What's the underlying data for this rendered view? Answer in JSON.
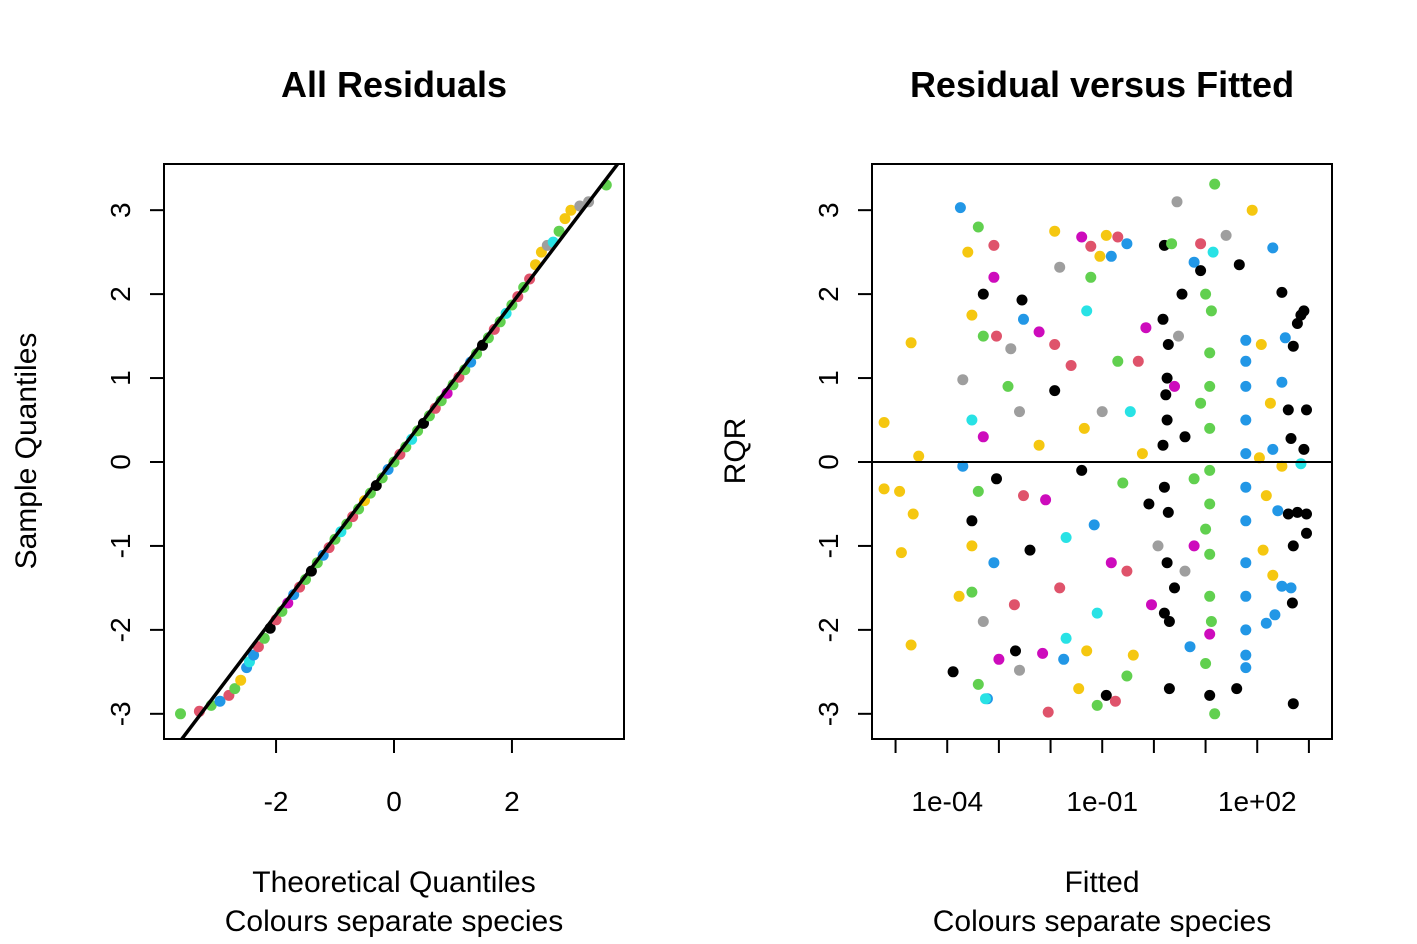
{
  "chart_data": [
    {
      "type": "scatter",
      "title": "All Residuals",
      "xlabel_lines": [
        "Theoretical Quantiles",
        "Colours separate species"
      ],
      "ylabel": "Sample Quantiles",
      "xlim": [
        -3.9,
        3.9
      ],
      "ylim": [
        -3.3,
        3.55
      ],
      "x_ticks": [
        -2,
        0,
        2
      ],
      "x_tick_labels": [
        "-2",
        "0",
        "2"
      ],
      "y_ticks": [
        -3,
        -2,
        -1,
        0,
        1,
        2,
        3
      ],
      "y_tick_labels": [
        "-3",
        "-2",
        "-1",
        "0",
        "1",
        "2",
        "3"
      ],
      "reference_line": {
        "x": [
          -3.9,
          3.9
        ],
        "y": [
          -3.58,
          3.65
        ]
      },
      "series_colors": [
        "#000000",
        "#DF536B",
        "#61D04F",
        "#2297E6",
        "#28E2E5",
        "#CD0BBC",
        "#F5C710",
        "#9E9E9E"
      ],
      "points": [
        [
          -3.62,
          -3.0,
          2
        ],
        [
          -3.3,
          -2.97,
          1
        ],
        [
          -3.1,
          -2.9,
          2
        ],
        [
          -2.95,
          -2.85,
          3
        ],
        [
          -2.8,
          -2.78,
          1
        ],
        [
          -2.7,
          -2.7,
          2
        ],
        [
          -2.6,
          -2.6,
          6
        ],
        [
          -2.5,
          -2.45,
          3
        ],
        [
          -2.45,
          -2.38,
          4
        ],
        [
          -2.38,
          -2.3,
          3
        ],
        [
          -2.3,
          -2.2,
          1
        ],
        [
          -2.2,
          -2.1,
          2
        ],
        [
          -2.1,
          -1.98,
          0
        ],
        [
          -2.0,
          -1.88,
          1
        ],
        [
          -1.9,
          -1.78,
          2
        ],
        [
          -1.8,
          -1.68,
          5
        ],
        [
          -1.7,
          -1.58,
          3
        ],
        [
          -1.6,
          -1.49,
          1
        ],
        [
          -1.5,
          -1.4,
          2
        ],
        [
          -1.4,
          -1.3,
          0
        ],
        [
          -1.3,
          -1.2,
          2
        ],
        [
          -1.2,
          -1.11,
          3
        ],
        [
          -1.1,
          -1.02,
          1
        ],
        [
          -1.0,
          -0.92,
          2
        ],
        [
          -0.9,
          -0.83,
          4
        ],
        [
          -0.8,
          -0.74,
          2
        ],
        [
          -0.7,
          -0.65,
          1
        ],
        [
          -0.6,
          -0.56,
          2
        ],
        [
          -0.5,
          -0.46,
          6
        ],
        [
          -0.4,
          -0.37,
          2
        ],
        [
          -0.3,
          -0.28,
          0
        ],
        [
          -0.2,
          -0.19,
          2
        ],
        [
          -0.1,
          -0.09,
          3
        ],
        [
          0.0,
          0.0,
          2
        ],
        [
          0.1,
          0.09,
          1
        ],
        [
          0.2,
          0.18,
          2
        ],
        [
          0.3,
          0.27,
          4
        ],
        [
          0.4,
          0.37,
          2
        ],
        [
          0.5,
          0.46,
          0
        ],
        [
          0.6,
          0.55,
          2
        ],
        [
          0.7,
          0.64,
          1
        ],
        [
          0.8,
          0.73,
          2
        ],
        [
          0.9,
          0.82,
          5
        ],
        [
          1.0,
          0.92,
          2
        ],
        [
          1.1,
          1.01,
          1
        ],
        [
          1.2,
          1.1,
          2
        ],
        [
          1.3,
          1.19,
          3
        ],
        [
          1.4,
          1.29,
          2
        ],
        [
          1.5,
          1.39,
          0
        ],
        [
          1.6,
          1.48,
          2
        ],
        [
          1.7,
          1.58,
          1
        ],
        [
          1.8,
          1.67,
          2
        ],
        [
          1.9,
          1.77,
          4
        ],
        [
          2.0,
          1.87,
          2
        ],
        [
          2.1,
          1.97,
          1
        ],
        [
          2.2,
          2.08,
          2
        ],
        [
          2.3,
          2.18,
          1
        ],
        [
          2.4,
          2.35,
          6
        ],
        [
          2.5,
          2.5,
          6
        ],
        [
          2.6,
          2.58,
          7
        ],
        [
          2.7,
          2.62,
          4
        ],
        [
          2.8,
          2.75,
          2
        ],
        [
          2.9,
          2.9,
          6
        ],
        [
          3.0,
          3.0,
          6
        ],
        [
          3.15,
          3.05,
          7
        ],
        [
          3.3,
          3.1,
          7
        ],
        [
          3.6,
          3.3,
          2
        ]
      ]
    },
    {
      "type": "scatter",
      "title": "Residual versus Fitted",
      "xlabel_lines": [
        "Fitted",
        "Colours separate species"
      ],
      "ylabel": "RQR",
      "x_log10": true,
      "xlim": [
        3.5e-06,
        2800
      ],
      "ylim": [
        -3.3,
        3.55
      ],
      "x_ticks": [
        1e-05,
        0.0001,
        0.001,
        0.01,
        0.1,
        1,
        10,
        100,
        1000
      ],
      "x_tick_labels": [
        "1e-04",
        "1e-01",
        "1e+02"
      ],
      "x_tick_label_values": [
        0.0001,
        0.1,
        100
      ],
      "y_ticks": [
        -3,
        -2,
        -1,
        0,
        1,
        2,
        3
      ],
      "y_tick_labels": [
        "-3",
        "-2",
        "-1",
        "0",
        "1",
        "2",
        "3"
      ],
      "hline": 0,
      "series_colors": [
        "#000000",
        "#DF536B",
        "#61D04F",
        "#2297E6",
        "#28E2E5",
        "#CD0BBC",
        "#F5C710",
        "#9E9E9E"
      ],
      "points": [
        [
          6e-06,
          0.47,
          6
        ],
        [
          6e-06,
          -0.32,
          6
        ],
        [
          1.3e-05,
          -1.08,
          6
        ],
        [
          1.2e-05,
          -0.35,
          6
        ],
        [
          2e-05,
          1.42,
          6
        ],
        [
          2e-05,
          -2.18,
          6
        ],
        [
          2.8e-05,
          0.07,
          6
        ],
        [
          2.2e-05,
          -0.62,
          6
        ],
        [
          0.00018,
          3.03,
          3
        ],
        [
          0.0004,
          2.8,
          2
        ],
        [
          0.00025,
          2.5,
          6
        ],
        [
          0.0008,
          2.58,
          1
        ],
        [
          0.0008,
          2.2,
          5
        ],
        [
          0.0005,
          2.0,
          0
        ],
        [
          0.0028,
          1.93,
          0
        ],
        [
          0.0021,
          -2.25,
          0
        ],
        [
          0.0004,
          -2.65,
          2
        ],
        [
          0.0006,
          -2.82,
          3
        ],
        [
          0.00055,
          -2.82,
          4
        ],
        [
          0.00013,
          -2.5,
          0
        ],
        [
          0.0025,
          -2.48,
          7
        ],
        [
          0.009,
          -2.98,
          1
        ],
        [
          0.035,
          -2.7,
          6
        ],
        [
          0.12,
          -2.78,
          0
        ],
        [
          0.18,
          -2.85,
          1
        ],
        [
          0.3,
          -2.55,
          2
        ],
        [
          0.08,
          -2.9,
          2
        ],
        [
          0.05,
          -2.25,
          6
        ],
        [
          0.02,
          -2.1,
          4
        ],
        [
          0.007,
          -2.28,
          5
        ],
        [
          0.012,
          2.75,
          6
        ],
        [
          0.04,
          2.68,
          5
        ],
        [
          0.12,
          2.7,
          6
        ],
        [
          0.2,
          2.68,
          1
        ],
        [
          0.3,
          2.6,
          3
        ],
        [
          0.06,
          2.57,
          1
        ],
        [
          0.09,
          2.45,
          6
        ],
        [
          0.015,
          2.32,
          7
        ],
        [
          0.15,
          2.45,
          3
        ],
        [
          1.6,
          2.58,
          0
        ],
        [
          2.2,
          2.6,
          2
        ],
        [
          2.8,
          3.1,
          7
        ],
        [
          8,
          2.6,
          1
        ],
        [
          14,
          2.5,
          4
        ],
        [
          15,
          3.31,
          2
        ],
        [
          25,
          2.7,
          7
        ],
        [
          80,
          3.0,
          6
        ],
        [
          200,
          2.55,
          3
        ],
        [
          45,
          2.35,
          0
        ],
        [
          6,
          2.38,
          3
        ],
        [
          8,
          2.28,
          0
        ],
        [
          10,
          2.0,
          2
        ],
        [
          3.5,
          2.0,
          0
        ],
        [
          300,
          2.02,
          0
        ],
        [
          800,
          1.8,
          0
        ],
        [
          700,
          1.75,
          0
        ],
        [
          600,
          1.65,
          0
        ],
        [
          350,
          1.48,
          3
        ],
        [
          120,
          1.4,
          6
        ],
        [
          500,
          1.38,
          0
        ],
        [
          300,
          0.95,
          3
        ],
        [
          180,
          0.7,
          6
        ],
        [
          400,
          0.62,
          0
        ],
        [
          900,
          0.62,
          0
        ],
        [
          450,
          0.28,
          0
        ],
        [
          800,
          0.15,
          0
        ],
        [
          200,
          0.15,
          3
        ],
        [
          110,
          0.05,
          6
        ],
        [
          300,
          -0.05,
          6
        ],
        [
          700,
          -0.02,
          4
        ],
        [
          150,
          -0.4,
          6
        ],
        [
          600,
          -0.6,
          0
        ],
        [
          900,
          -0.62,
          0
        ],
        [
          400,
          -0.62,
          0
        ],
        [
          250,
          -0.58,
          3
        ],
        [
          900,
          -0.85,
          0
        ],
        [
          500,
          -1.0,
          0
        ],
        [
          130,
          -1.05,
          6
        ],
        [
          200,
          -1.35,
          6
        ],
        [
          300,
          -1.48,
          3
        ],
        [
          450,
          -1.5,
          3
        ],
        [
          480,
          -1.68,
          0
        ],
        [
          220,
          -1.82,
          3
        ],
        [
          150,
          -1.92,
          3
        ],
        [
          40,
          -2.7,
          0
        ],
        [
          500,
          -2.88,
          0
        ],
        [
          12,
          -2.78,
          0
        ],
        [
          2,
          -2.7,
          0
        ],
        [
          15,
          -3.0,
          2
        ],
        [
          10,
          -2.4,
          2
        ],
        [
          0.0003,
          1.75,
          6
        ],
        [
          0.0005,
          1.5,
          2
        ],
        [
          0.0009,
          1.5,
          1
        ],
        [
          0.0017,
          1.35,
          7
        ],
        [
          0.003,
          1.7,
          3
        ],
        [
          0.006,
          1.55,
          5
        ],
        [
          0.0002,
          0.98,
          7
        ],
        [
          0.0003,
          0.5,
          4
        ],
        [
          0.0002,
          -0.05,
          3
        ],
        [
          0.0004,
          -0.35,
          2
        ],
        [
          0.0003,
          -0.7,
          0
        ],
        [
          0.00017,
          -1.6,
          6
        ],
        [
          0.0003,
          -1.55,
          2
        ],
        [
          0.0005,
          -1.9,
          7
        ],
        [
          0.001,
          -2.35,
          5
        ],
        [
          0.002,
          -1.7,
          1
        ],
        [
          0.004,
          -1.05,
          0
        ],
        [
          0.008,
          -0.45,
          5
        ],
        [
          0.012,
          0.85,
          0
        ],
        [
          0.025,
          1.15,
          1
        ],
        [
          0.045,
          0.4,
          6
        ],
        [
          0.07,
          -0.75,
          3
        ],
        [
          0.15,
          -1.2,
          5
        ],
        [
          0.25,
          -0.25,
          2
        ],
        [
          0.35,
          0.6,
          4
        ],
        [
          0.5,
          1.2,
          1
        ],
        [
          0.8,
          -0.5,
          0
        ],
        [
          1.2,
          -1.0,
          7
        ],
        [
          1.8,
          1.0,
          0
        ],
        [
          2.5,
          -1.5,
          0
        ],
        [
          4,
          0.3,
          0
        ],
        [
          6,
          -0.2,
          2
        ],
        [
          8,
          0.7,
          2
        ],
        [
          10,
          -0.8,
          2
        ],
        [
          1.5,
          0.2,
          0
        ],
        [
          1.6,
          -0.3,
          0
        ],
        [
          1.7,
          0.8,
          0
        ],
        [
          1.8,
          -1.2,
          0
        ],
        [
          1.9,
          1.4,
          0
        ],
        [
          2.0,
          -1.9,
          0
        ],
        [
          1.5,
          1.7,
          0
        ],
        [
          1.6,
          -1.8,
          0
        ],
        [
          1.8,
          0.5,
          0
        ],
        [
          1.9,
          -0.6,
          0
        ],
        [
          12,
          1.3,
          2
        ],
        [
          12,
          0.9,
          2
        ],
        [
          12,
          0.4,
          2
        ],
        [
          12,
          -0.1,
          2
        ],
        [
          12,
          -0.5,
          2
        ],
        [
          12,
          -1.1,
          2
        ],
        [
          12,
          -1.6,
          2
        ],
        [
          13,
          1.8,
          2
        ],
        [
          13,
          -1.9,
          2
        ],
        [
          12,
          -2.05,
          5
        ],
        [
          60,
          1.2,
          3
        ],
        [
          60,
          0.9,
          3
        ],
        [
          60,
          0.5,
          3
        ],
        [
          60,
          0.1,
          3
        ],
        [
          60,
          -0.3,
          3
        ],
        [
          60,
          -0.7,
          3
        ],
        [
          60,
          -1.2,
          3
        ],
        [
          60,
          -1.6,
          3
        ],
        [
          60,
          -2.0,
          3
        ],
        [
          60,
          -2.3,
          3
        ],
        [
          60,
          -2.45,
          3
        ],
        [
          60,
          1.45,
          3
        ],
        [
          0.2,
          1.2,
          2
        ],
        [
          0.3,
          -1.3,
          1
        ],
        [
          0.1,
          0.6,
          7
        ],
        [
          0.02,
          -0.9,
          4
        ],
        [
          0.006,
          0.2,
          6
        ],
        [
          0.003,
          -0.4,
          1
        ],
        [
          0.0015,
          0.9,
          2
        ],
        [
          0.0008,
          -1.2,
          3
        ],
        [
          0.0005,
          0.3,
          5
        ],
        [
          0.0003,
          -1.0,
          6
        ],
        [
          0.7,
          1.6,
          5
        ],
        [
          0.9,
          -1.7,
          5
        ],
        [
          3,
          1.5,
          7
        ],
        [
          4,
          -1.3,
          7
        ],
        [
          0.05,
          1.8,
          4
        ],
        [
          0.08,
          -1.8,
          4
        ],
        [
          0.012,
          1.4,
          1
        ],
        [
          0.015,
          -1.5,
          1
        ],
        [
          0.04,
          -0.1,
          0
        ],
        [
          0.6,
          0.1,
          6
        ],
        [
          2.5,
          0.9,
          5
        ],
        [
          6,
          -1.0,
          5
        ],
        [
          0.0009,
          -0.2,
          0
        ],
        [
          0.0025,
          0.6,
          7
        ],
        [
          0.018,
          -2.35,
          3
        ],
        [
          0.06,
          2.2,
          2
        ],
        [
          0.4,
          -2.3,
          6
        ],
        [
          5,
          -2.2,
          3
        ]
      ]
    }
  ]
}
